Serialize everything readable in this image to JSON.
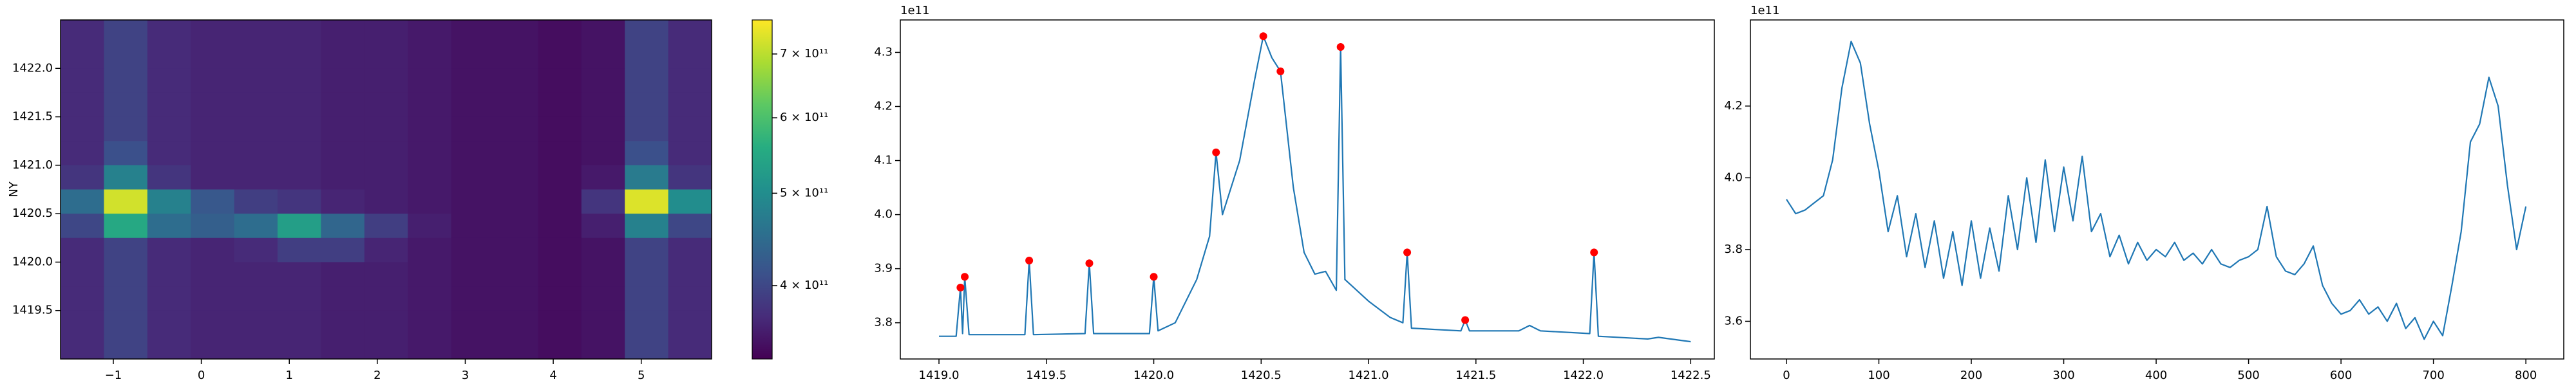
{
  "chart_data": [
    {
      "type": "heatmap",
      "ylabel": "NY",
      "cmap": "viridis",
      "log_color": true,
      "xlim": [
        -1.6,
        5.8
      ],
      "ylim": [
        1419.0,
        1422.5
      ],
      "xticks": [
        {
          "value": -1,
          "label": "−1"
        },
        0,
        1,
        2,
        3,
        4,
        5
      ],
      "yticks": [
        1419.5,
        {
          "value": 1420,
          "label": "1420.0"
        },
        1420.5,
        {
          "value": 1421,
          "label": "1421.0"
        },
        1421.5,
        {
          "value": 1422,
          "label": "1422.0"
        }
      ],
      "clim": [
        335000000000.0,
        760000000000.0
      ],
      "cticks": [
        {
          "value": 400000000000.0,
          "label": "4 × 10¹¹"
        },
        {
          "value": 500000000000.0,
          "label": "5 × 10¹¹"
        },
        {
          "value": 600000000000.0,
          "label": "6 × 10¹¹"
        },
        {
          "value": 700000000000.0,
          "label": "7 × 10¹¹"
        }
      ],
      "z": [
        [
          370000000000.0,
          395000000000.0,
          370000000000.0,
          365000000000.0,
          365000000000.0,
          365000000000.0,
          360000000000.0,
          360000000000.0,
          355000000000.0,
          350000000000.0,
          350000000000.0,
          345000000000.0,
          350000000000.0,
          395000000000.0,
          370000000000.0
        ],
        [
          370000000000.0,
          395000000000.0,
          370000000000.0,
          365000000000.0,
          365000000000.0,
          365000000000.0,
          360000000000.0,
          360000000000.0,
          355000000000.0,
          350000000000.0,
          350000000000.0,
          345000000000.0,
          350000000000.0,
          395000000000.0,
          370000000000.0
        ],
        [
          370000000000.0,
          395000000000.0,
          370000000000.0,
          365000000000.0,
          365000000000.0,
          365000000000.0,
          360000000000.0,
          360000000000.0,
          355000000000.0,
          350000000000.0,
          350000000000.0,
          345000000000.0,
          350000000000.0,
          395000000000.0,
          370000000000.0
        ],
        [
          370000000000.0,
          395000000000.0,
          370000000000.0,
          365000000000.0,
          365000000000.0,
          365000000000.0,
          360000000000.0,
          360000000000.0,
          355000000000.0,
          350000000000.0,
          350000000000.0,
          345000000000.0,
          350000000000.0,
          395000000000.0,
          370000000000.0
        ],
        [
          370000000000.0,
          395000000000.0,
          370000000000.0,
          365000000000.0,
          365000000000.0,
          365000000000.0,
          360000000000.0,
          360000000000.0,
          355000000000.0,
          350000000000.0,
          350000000000.0,
          345000000000.0,
          350000000000.0,
          395000000000.0,
          370000000000.0
        ],
        [
          370000000000.0,
          410000000000.0,
          370000000000.0,
          365000000000.0,
          365000000000.0,
          365000000000.0,
          360000000000.0,
          360000000000.0,
          355000000000.0,
          350000000000.0,
          350000000000.0,
          345000000000.0,
          350000000000.0,
          410000000000.0,
          370000000000.0
        ],
        [
          380000000000.0,
          480000000000.0,
          380000000000.0,
          365000000000.0,
          365000000000.0,
          365000000000.0,
          360000000000.0,
          360000000000.0,
          355000000000.0,
          350000000000.0,
          350000000000.0,
          345000000000.0,
          355000000000.0,
          470000000000.0,
          380000000000.0
        ],
        [
          450000000000.0,
          720000000000.0,
          480000000000.0,
          420000000000.0,
          390000000000.0,
          380000000000.0,
          365000000000.0,
          360000000000.0,
          355000000000.0,
          350000000000.0,
          350000000000.0,
          345000000000.0,
          380000000000.0,
          730000000000.0,
          500000000000.0
        ],
        [
          400000000000.0,
          550000000000.0,
          450000000000.0,
          430000000000.0,
          450000000000.0,
          530000000000.0,
          440000000000.0,
          390000000000.0,
          360000000000.0,
          350000000000.0,
          350000000000.0,
          345000000000.0,
          360000000000.0,
          480000000000.0,
          400000000000.0
        ],
        [
          370000000000.0,
          395000000000.0,
          370000000000.0,
          365000000000.0,
          370000000000.0,
          390000000000.0,
          390000000000.0,
          365000000000.0,
          355000000000.0,
          350000000000.0,
          350000000000.0,
          345000000000.0,
          350000000000.0,
          395000000000.0,
          370000000000.0
        ],
        [
          370000000000.0,
          395000000000.0,
          370000000000.0,
          365000000000.0,
          365000000000.0,
          365000000000.0,
          360000000000.0,
          360000000000.0,
          355000000000.0,
          350000000000.0,
          350000000000.0,
          345000000000.0,
          350000000000.0,
          395000000000.0,
          370000000000.0
        ],
        [
          370000000000.0,
          395000000000.0,
          370000000000.0,
          365000000000.0,
          365000000000.0,
          365000000000.0,
          360000000000.0,
          360000000000.0,
          355000000000.0,
          350000000000.0,
          350000000000.0,
          345000000000.0,
          350000000000.0,
          395000000000.0,
          370000000000.0
        ],
        [
          370000000000.0,
          395000000000.0,
          370000000000.0,
          365000000000.0,
          365000000000.0,
          365000000000.0,
          360000000000.0,
          360000000000.0,
          355000000000.0,
          350000000000.0,
          350000000000.0,
          345000000000.0,
          350000000000.0,
          395000000000.0,
          370000000000.0
        ],
        [
          370000000000.0,
          395000000000.0,
          370000000000.0,
          365000000000.0,
          365000000000.0,
          365000000000.0,
          360000000000.0,
          360000000000.0,
          355000000000.0,
          350000000000.0,
          350000000000.0,
          345000000000.0,
          350000000000.0,
          395000000000.0,
          370000000000.0
        ]
      ]
    },
    {
      "type": "line",
      "offset_text": "1e11",
      "xlim": [
        1418.82,
        1422.61
      ],
      "ylim": [
        3.733,
        4.36
      ],
      "xticks": [
        {
          "value": 1419,
          "label": "1419.0"
        },
        1419.5,
        {
          "value": 1420,
          "label": "1420.0"
        },
        1420.5,
        {
          "value": 1421,
          "label": "1421.0"
        },
        1421.5,
        {
          "value": 1422,
          "label": "1422.0"
        },
        1422.5
      ],
      "yticks": [
        3.8,
        3.9,
        {
          "value": 4,
          "label": "4.0"
        },
        4.1,
        4.2,
        4.3
      ],
      "series": [
        {
          "color": "#1f77b4",
          "style": "line",
          "x": [
            1419.0,
            1419.08,
            1419.1,
            1419.11,
            1419.12,
            1419.14,
            1419.4,
            1419.42,
            1419.44,
            1419.68,
            1419.7,
            1419.72,
            1419.98,
            1420.0,
            1420.02,
            1420.1,
            1420.2,
            1420.26,
            1420.29,
            1420.32,
            1420.4,
            1420.47,
            1420.51,
            1420.55,
            1420.59,
            1420.65,
            1420.7,
            1420.75,
            1420.8,
            1420.85,
            1420.87,
            1420.89,
            1421.0,
            1421.1,
            1421.16,
            1421.18,
            1421.2,
            1421.43,
            1421.45,
            1421.47,
            1421.7,
            1421.75,
            1421.8,
            1422.03,
            1422.05,
            1422.07,
            1422.3,
            1422.35,
            1422.5
          ],
          "values": [
            3.775,
            3.775,
            3.865,
            3.78,
            3.885,
            3.778,
            3.778,
            3.915,
            3.778,
            3.78,
            3.91,
            3.78,
            3.78,
            3.885,
            3.785,
            3.8,
            3.88,
            3.96,
            4.115,
            4.0,
            4.1,
            4.25,
            4.33,
            4.29,
            4.265,
            4.05,
            3.93,
            3.89,
            3.895,
            3.86,
            4.31,
            3.88,
            3.84,
            3.81,
            3.8,
            3.93,
            3.79,
            3.785,
            3.805,
            3.785,
            3.785,
            3.795,
            3.785,
            3.78,
            3.93,
            3.775,
            3.77,
            3.773,
            3.765
          ]
        },
        {
          "color": "#ff0000",
          "style": "marker",
          "x": [
            1419.1,
            1419.12,
            1419.42,
            1419.7,
            1420.0,
            1420.29,
            1420.51,
            1420.59,
            1420.87,
            1421.18,
            1421.45,
            1422.05
          ],
          "values": [
            3.865,
            3.885,
            3.915,
            3.91,
            3.885,
            4.115,
            4.33,
            4.265,
            4.31,
            3.93,
            3.805,
            3.93
          ]
        }
      ]
    },
    {
      "type": "line",
      "offset_text": "1e11",
      "xlim": [
        -39,
        841
      ],
      "ylim": [
        3.495,
        4.44
      ],
      "xticks": [
        0,
        100,
        200,
        300,
        400,
        500,
        600,
        700,
        800
      ],
      "yticks": [
        3.6,
        3.8,
        {
          "value": 4,
          "label": "4.0"
        },
        4.2
      ],
      "series": [
        {
          "color": "#1f77b4",
          "style": "line",
          "x": [
            0,
            10,
            20,
            30,
            40,
            50,
            60,
            70,
            80,
            90,
            100,
            110,
            120,
            130,
            140,
            150,
            160,
            170,
            180,
            190,
            200,
            210,
            220,
            230,
            240,
            250,
            260,
            270,
            280,
            290,
            300,
            310,
            320,
            330,
            340,
            350,
            360,
            370,
            380,
            390,
            400,
            410,
            420,
            430,
            440,
            450,
            460,
            470,
            480,
            490,
            500,
            510,
            520,
            530,
            540,
            550,
            560,
            570,
            580,
            590,
            600,
            610,
            620,
            630,
            640,
            650,
            660,
            670,
            680,
            690,
            700,
            710,
            720,
            730,
            740,
            750,
            760,
            770,
            780,
            790,
            800
          ],
          "values": [
            3.94,
            3.9,
            3.91,
            3.93,
            3.95,
            4.05,
            4.25,
            4.38,
            4.32,
            4.15,
            4.02,
            3.85,
            3.95,
            3.78,
            3.9,
            3.75,
            3.88,
            3.72,
            3.85,
            3.7,
            3.88,
            3.72,
            3.86,
            3.74,
            3.95,
            3.8,
            4.0,
            3.82,
            4.05,
            3.85,
            4.03,
            3.88,
            4.06,
            3.85,
            3.9,
            3.78,
            3.84,
            3.76,
            3.82,
            3.77,
            3.8,
            3.78,
            3.82,
            3.77,
            3.79,
            3.76,
            3.8,
            3.76,
            3.75,
            3.77,
            3.78,
            3.8,
            3.92,
            3.78,
            3.74,
            3.73,
            3.76,
            3.81,
            3.7,
            3.65,
            3.62,
            3.63,
            3.66,
            3.62,
            3.64,
            3.6,
            3.65,
            3.58,
            3.61,
            3.55,
            3.6,
            3.56,
            3.7,
            3.85,
            4.1,
            4.15,
            4.28,
            4.2,
            3.98,
            3.8,
            3.92
          ]
        }
      ]
    }
  ]
}
